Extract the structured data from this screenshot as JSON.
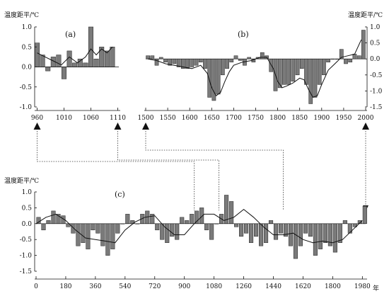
{
  "chart_data": [
    {
      "id": "a",
      "type": "bar",
      "panel_label": "(a)",
      "ylabel": "温度距平/℃",
      "ylim": [
        -1.0,
        1.0
      ],
      "yticks": [
        1.0,
        0.5,
        0.0,
        -0.5,
        -1.0
      ],
      "ytick_labels": [
        "1.0",
        "0.5",
        "0.0",
        "-0.5",
        "-1.0"
      ],
      "xlim": [
        958,
        1112
      ],
      "xticks": [
        960,
        1010,
        1060,
        1110
      ],
      "xtick_labels": [
        "960",
        "1010",
        "1060",
        "1110"
      ],
      "x": [
        960,
        970,
        980,
        990,
        1000,
        1010,
        1020,
        1030,
        1040,
        1050,
        1060,
        1070,
        1080,
        1090,
        1100
      ],
      "values": [
        0.6,
        0.3,
        -0.1,
        0.25,
        0.3,
        -0.3,
        0.4,
        0.1,
        0.2,
        0.1,
        1.0,
        0.2,
        0.5,
        0.4,
        0.5
      ],
      "line_x": [
        960,
        975,
        990,
        1005,
        1020,
        1035,
        1050,
        1060,
        1070,
        1080,
        1090,
        1100
      ],
      "line_y": [
        0.35,
        0.25,
        0.15,
        0.05,
        0.25,
        0.1,
        0.25,
        0.45,
        0.3,
        0.45,
        0.35,
        0.5
      ],
      "grid": false
    },
    {
      "id": "b",
      "type": "bar",
      "panel_label": "(b)",
      "ylabel": "温度距平/℃",
      "ylim": [
        -1.5,
        1.0
      ],
      "yticks": [
        1.0,
        0.5,
        0.0,
        -0.5,
        -1.0,
        -1.5
      ],
      "ytick_labels": [
        "1.0",
        "0.5",
        "0.0",
        "-0.5",
        "-1.0",
        "-1.5"
      ],
      "xlim": [
        1500,
        2000
      ],
      "xticks": [
        1500,
        1550,
        1600,
        1650,
        1700,
        1750,
        1800,
        1850,
        1900,
        1950,
        2000
      ],
      "xtick_labels": [
        "1500",
        "1550",
        "1600",
        "1650",
        "1700",
        "1750",
        "1800",
        "1850",
        "1900",
        "1950",
        "2000"
      ],
      "x": [
        1505,
        1515,
        1525,
        1535,
        1545,
        1555,
        1565,
        1575,
        1585,
        1595,
        1605,
        1615,
        1625,
        1635,
        1645,
        1655,
        1665,
        1675,
        1685,
        1695,
        1705,
        1715,
        1725,
        1735,
        1745,
        1755,
        1765,
        1775,
        1785,
        1795,
        1805,
        1815,
        1825,
        1835,
        1845,
        1855,
        1865,
        1875,
        1885,
        1895,
        1905,
        1915,
        1925,
        1935,
        1945,
        1955,
        1965,
        1975,
        1985,
        1995
      ],
      "values": [
        0.1,
        0.1,
        -0.2,
        0.05,
        -0.1,
        -0.2,
        -0.15,
        -0.25,
        -0.3,
        -0.3,
        -0.25,
        -0.2,
        -0.1,
        -0.3,
        -1.2,
        -1.3,
        -1.1,
        -0.5,
        -0.3,
        -0.1,
        0.1,
        -0.05,
        -0.2,
        0.05,
        -0.1,
        0.05,
        0.2,
        0.1,
        -0.4,
        -1.0,
        -0.9,
        -0.8,
        -0.8,
        -0.7,
        -0.5,
        -0.3,
        -0.8,
        -1.4,
        -1.2,
        -0.8,
        -0.5,
        -0.1,
        0.0,
        0.0,
        0.3,
        -0.15,
        -0.1,
        0.15,
        0.1,
        0.9
      ],
      "line_x": [
        1505,
        1525,
        1545,
        1565,
        1585,
        1605,
        1625,
        1640,
        1650,
        1660,
        1670,
        1680,
        1690,
        1700,
        1720,
        1740,
        1760,
        1775,
        1790,
        1800,
        1810,
        1820,
        1835,
        1850,
        1860,
        1870,
        1880,
        1890,
        1900,
        1915,
        1930,
        1945,
        1960,
        1975,
        1990
      ],
      "line_y": [
        0.0,
        -0.05,
        -0.15,
        -0.2,
        -0.25,
        -0.3,
        -0.2,
        -0.45,
        -0.9,
        -1.15,
        -1.05,
        -0.7,
        -0.4,
        -0.2,
        -0.1,
        -0.05,
        0.05,
        0.05,
        -0.3,
        -0.7,
        -0.9,
        -0.85,
        -0.75,
        -0.6,
        -0.65,
        -0.95,
        -1.2,
        -1.15,
        -0.8,
        -0.35,
        -0.15,
        0.05,
        0.1,
        0.15,
        0.6
      ],
      "grid": false
    },
    {
      "id": "c",
      "type": "bar",
      "panel_label": "(c)",
      "ylabel": "温度距平/℃",
      "ylim": [
        -1.5,
        1.0
      ],
      "yticks": [
        1.0,
        0.5,
        0.0,
        -0.5,
        -1.0,
        -1.5
      ],
      "ytick_labels": [
        "1.0",
        "0.5",
        "0.0",
        "-0.5",
        "-1.0",
        "-1.5"
      ],
      "xlim": [
        0,
        2000
      ],
      "xticks": [
        0,
        180,
        360,
        540,
        720,
        900,
        1080,
        1260,
        1440,
        1620,
        1800,
        1980
      ],
      "xtick_labels": [
        "0",
        "180",
        "360",
        "540",
        "720",
        "900",
        "1080",
        "1260",
        "1440",
        "1620",
        "1800",
        "1980"
      ],
      "xunit": "年",
      "x": [
        15,
        45,
        75,
        105,
        135,
        165,
        195,
        225,
        255,
        285,
        315,
        345,
        375,
        405,
        435,
        465,
        495,
        525,
        555,
        585,
        615,
        645,
        675,
        705,
        735,
        765,
        795,
        825,
        855,
        885,
        915,
        945,
        975,
        1005,
        1035,
        1065,
        1095,
        1125,
        1155,
        1185,
        1215,
        1245,
        1275,
        1305,
        1335,
        1365,
        1395,
        1425,
        1455,
        1485,
        1515,
        1545,
        1575,
        1605,
        1635,
        1665,
        1695,
        1725,
        1755,
        1785,
        1815,
        1845,
        1875,
        1905,
        1935,
        1965,
        1995
      ],
      "values": [
        0.2,
        -0.2,
        0.1,
        0.4,
        0.3,
        0.25,
        -0.1,
        -0.3,
        -0.7,
        -0.6,
        -0.8,
        -0.2,
        -0.3,
        -0.7,
        -1.0,
        -0.8,
        -0.3,
        0.0,
        0.3,
        0.1,
        0.0,
        0.3,
        0.4,
        0.3,
        -0.2,
        -0.5,
        -0.6,
        -0.4,
        -0.5,
        0.2,
        0.1,
        0.3,
        0.4,
        0.5,
        -0.2,
        -0.5,
        0.0,
        0.3,
        0.9,
        0.7,
        -0.1,
        -0.4,
        -0.3,
        -0.6,
        -0.4,
        -0.7,
        -0.6,
        0.1,
        -0.5,
        -0.3,
        -0.4,
        -0.7,
        -1.1,
        -0.7,
        -0.3,
        -0.4,
        -1.0,
        -0.8,
        -0.6,
        -0.7,
        -0.9,
        -0.6,
        0.1,
        -0.3,
        -0.1,
        0.1,
        0.55
      ],
      "line_x": [
        0,
        60,
        120,
        180,
        240,
        300,
        360,
        420,
        480,
        540,
        600,
        660,
        720,
        780,
        840,
        900,
        960,
        1020,
        1080,
        1140,
        1200,
        1260,
        1320,
        1380,
        1440,
        1500,
        1560,
        1620,
        1680,
        1740,
        1800,
        1860,
        1920,
        1980
      ],
      "line_y": [
        0.0,
        0.2,
        0.3,
        0.1,
        -0.2,
        -0.45,
        -0.5,
        -0.55,
        -0.6,
        -0.2,
        0.05,
        0.2,
        0.25,
        -0.1,
        -0.35,
        -0.35,
        0.0,
        0.3,
        0.3,
        0.1,
        0.2,
        0.45,
        0.2,
        -0.1,
        -0.35,
        -0.35,
        -0.3,
        -0.5,
        -0.6,
        -0.55,
        -0.6,
        -0.5,
        -0.2,
        0.1
      ],
      "grid": false
    }
  ],
  "connectors": [
    {
      "from_label": "960",
      "to_c_year": 960
    },
    {
      "from_label": "1110",
      "to_c_year": 1110
    },
    {
      "from_label": "1500",
      "to_c_year": 1500
    },
    {
      "from_label": "2000",
      "to_c_year": 2000
    }
  ],
  "colors": {
    "bar": "#7a7a7a",
    "bar_stroke": "#222222",
    "line": "#111111",
    "axis": "#111111",
    "connector": "#333333"
  }
}
